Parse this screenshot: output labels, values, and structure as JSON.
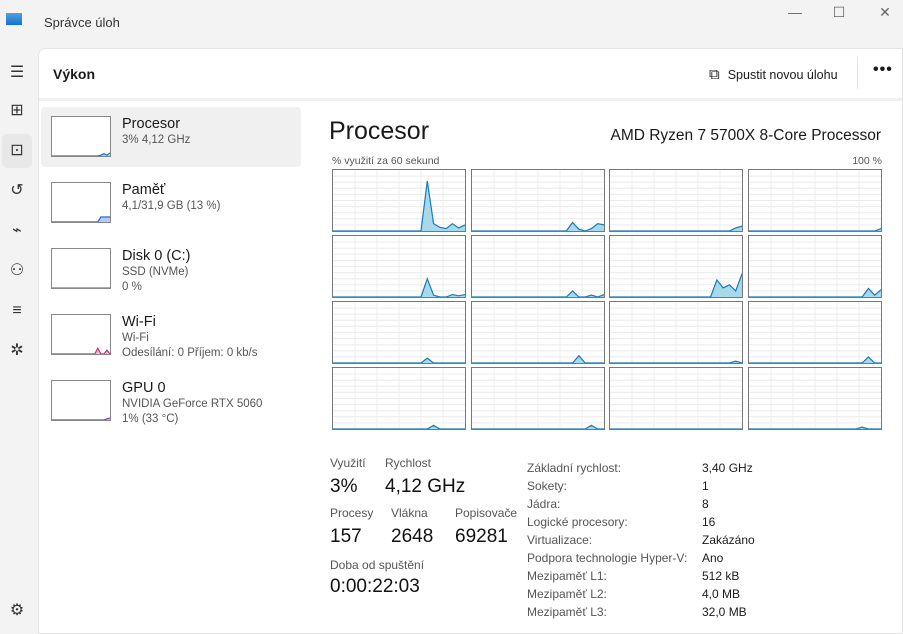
{
  "window": {
    "title": "Správce úloh",
    "icon": "task-manager-icon",
    "controls": [
      "minimize-icon",
      "maximize-icon",
      "close-icon"
    ]
  },
  "nav": [
    "hamburger-icon",
    "processes-icon",
    "performance-icon",
    "app-history-icon",
    "startup-icon",
    "users-icon",
    "details-icon",
    "services-icon",
    "settings-icon"
  ],
  "header": {
    "title": "Výkon",
    "run_task": "Spustit novou úlohu",
    "more": "•••"
  },
  "sidebar": [
    {
      "name": "Procesor",
      "lines": [
        "3% 4,12 GHz"
      ],
      "color": "#117dbb",
      "graph": [
        0,
        0,
        0,
        0,
        0,
        0,
        0,
        0,
        0,
        0,
        0,
        0,
        0,
        0,
        0,
        0,
        2,
        6,
        2,
        8
      ]
    },
    {
      "name": "Paměť",
      "lines": [
        "4,1/31,9 GB (13 %)"
      ],
      "color": "#1a5fd6",
      "graph": [
        0,
        0,
        0,
        0,
        0,
        0,
        0,
        0,
        0,
        0,
        0,
        0,
        0,
        0,
        0,
        0,
        13,
        13,
        13,
        13
      ]
    },
    {
      "name": "Disk 0 (C:)",
      "lines": [
        "SSD (NVMe)",
        "0 %"
      ],
      "color": "#4da60c",
      "graph": [
        0,
        0,
        0,
        0,
        0,
        0,
        0,
        0,
        0,
        0,
        0,
        0,
        0,
        0,
        0,
        0,
        0,
        0,
        0,
        0
      ]
    },
    {
      "name": "Wi-Fi",
      "lines": [
        "Wi-Fi",
        "Odesílání: 0 Příjem: 0 kb/s"
      ],
      "color": "#c3317a",
      "graph": [
        0,
        0,
        0,
        0,
        0,
        0,
        0,
        0,
        0,
        0,
        0,
        0,
        0,
        0,
        0,
        15,
        0,
        0,
        10,
        0
      ]
    },
    {
      "name": "GPU 0",
      "lines": [
        "NVIDIA GeForce RTX 5060",
        "1%  (33 °C)"
      ],
      "color": "#8a2be2",
      "graph": [
        0,
        0,
        0,
        0,
        0,
        0,
        0,
        0,
        0,
        0,
        0,
        0,
        0,
        0,
        0,
        0,
        0,
        0,
        3,
        5
      ]
    }
  ],
  "main": {
    "title": "Procesor",
    "cpu": "AMD Ryzen 7 5700X 8-Core Processor",
    "graph_label": "% využití za 60 sekund",
    "graph_max": "100 %",
    "line_color": "#117dbb",
    "fill_color": "#a8d8ea"
  },
  "chart_data": {
    "type": "area",
    "ylim": [
      0,
      100
    ],
    "grid": true,
    "cores": [
      [
        0,
        0,
        0,
        0,
        0,
        0,
        0,
        0,
        0,
        0,
        0,
        0,
        0,
        0,
        0,
        82,
        12,
        6,
        4,
        12,
        5,
        10
      ],
      [
        0,
        0,
        0,
        0,
        0,
        0,
        0,
        0,
        0,
        0,
        0,
        0,
        0,
        0,
        0,
        0,
        14,
        3,
        0,
        4,
        12,
        10
      ],
      [
        0,
        0,
        0,
        0,
        0,
        0,
        0,
        0,
        0,
        0,
        0,
        0,
        0,
        0,
        0,
        0,
        0,
        0,
        0,
        0,
        5,
        8
      ],
      [
        0,
        0,
        0,
        0,
        0,
        0,
        0,
        0,
        0,
        0,
        0,
        0,
        0,
        0,
        0,
        0,
        0,
        0,
        0,
        0,
        0,
        4
      ],
      [
        0,
        0,
        0,
        0,
        0,
        0,
        0,
        0,
        0,
        0,
        0,
        0,
        0,
        0,
        0,
        30,
        3,
        0,
        0,
        4,
        2,
        4
      ],
      [
        0,
        0,
        0,
        0,
        0,
        0,
        0,
        0,
        0,
        0,
        0,
        0,
        0,
        0,
        0,
        0,
        10,
        0,
        0,
        3,
        0,
        4
      ],
      [
        0,
        0,
        0,
        0,
        0,
        0,
        0,
        0,
        0,
        0,
        0,
        0,
        0,
        0,
        0,
        0,
        0,
        28,
        15,
        20,
        10,
        38
      ],
      [
        0,
        0,
        0,
        0,
        0,
        0,
        0,
        0,
        0,
        0,
        0,
        0,
        0,
        0,
        0,
        0,
        0,
        0,
        0,
        14,
        3,
        12
      ],
      [
        0,
        0,
        0,
        0,
        0,
        0,
        0,
        0,
        0,
        0,
        0,
        0,
        0,
        0,
        0,
        8,
        0,
        0,
        0,
        0,
        0,
        0
      ],
      [
        0,
        0,
        0,
        0,
        0,
        0,
        0,
        0,
        0,
        0,
        0,
        0,
        0,
        0,
        0,
        0,
        0,
        12,
        0,
        0,
        0,
        0
      ],
      [
        0,
        0,
        0,
        0,
        0,
        0,
        0,
        0,
        0,
        0,
        0,
        0,
        0,
        0,
        0,
        0,
        0,
        0,
        0,
        0,
        3,
        0
      ],
      [
        0,
        0,
        0,
        0,
        0,
        0,
        0,
        0,
        0,
        0,
        0,
        0,
        0,
        0,
        0,
        0,
        0,
        0,
        0,
        10,
        0,
        0
      ],
      [
        0,
        0,
        0,
        0,
        0,
        0,
        0,
        0,
        0,
        0,
        0,
        0,
        0,
        0,
        0,
        0,
        6,
        0,
        0,
        0,
        0,
        0
      ],
      [
        0,
        0,
        0,
        0,
        0,
        0,
        0,
        0,
        0,
        0,
        0,
        0,
        0,
        0,
        0,
        0,
        0,
        0,
        0,
        6,
        0,
        0
      ],
      [
        0,
        0,
        0,
        0,
        0,
        0,
        0,
        0,
        0,
        0,
        0,
        0,
        0,
        0,
        0,
        0,
        0,
        0,
        0,
        0,
        0,
        0
      ],
      [
        0,
        0,
        0,
        0,
        0,
        0,
        0,
        0,
        0,
        0,
        0,
        0,
        0,
        0,
        0,
        0,
        0,
        0,
        3,
        0,
        0,
        0
      ]
    ]
  },
  "stats": {
    "utilization": {
      "label": "Využití",
      "value": "3%"
    },
    "speed": {
      "label": "Rychlost",
      "value": "4,12 GHz"
    },
    "processes": {
      "label": "Procesy",
      "value": "157"
    },
    "threads": {
      "label": "Vlákna",
      "value": "2648"
    },
    "handles": {
      "label": "Popisovače",
      "value": "69281"
    },
    "uptime": {
      "label": "Doba od spuštění",
      "value": "0:00:22:03"
    }
  },
  "specs": [
    {
      "k": "Základní rychlost:",
      "v": "3,40 GHz"
    },
    {
      "k": "Sokety:",
      "v": "1"
    },
    {
      "k": "Jádra:",
      "v": "8"
    },
    {
      "k": "Logické procesory:",
      "v": "16"
    },
    {
      "k": "Virtualizace:",
      "v": "Zakázáno"
    },
    {
      "k": "Podpora technologie Hyper-V:",
      "v": "Ano"
    },
    {
      "k": "Mezipaměť L1:",
      "v": "512 kB"
    },
    {
      "k": "Mezipaměť L2:",
      "v": "4,0 MB"
    },
    {
      "k": "Mezipaměť L3:",
      "v": "32,0 MB"
    }
  ]
}
